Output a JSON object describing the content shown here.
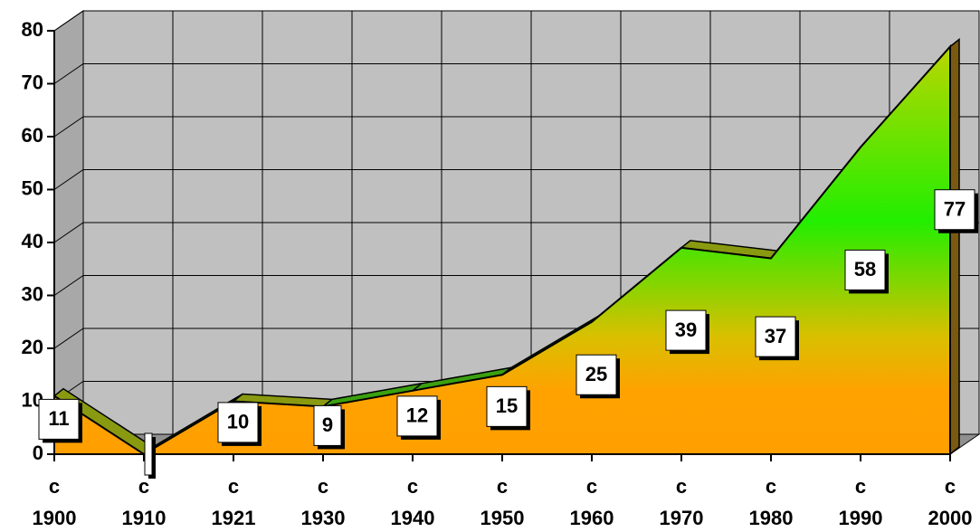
{
  "chart_data": {
    "type": "area3d",
    "categories": [
      "c\n1900",
      "c\n1910",
      "c\n1921",
      "c\n1930",
      "c\n1940",
      "c\n1950",
      "c\n1960",
      "c\n1970",
      "c\n1980",
      "c\n1990",
      "c\n2000"
    ],
    "values": [
      11,
      0,
      10,
      9,
      12,
      15,
      25,
      39,
      37,
      58,
      77
    ],
    "value_labels": [
      "11",
      null,
      "10",
      "9",
      "12",
      "15",
      "25",
      "39",
      "37",
      "58",
      "77"
    ],
    "ylim": [
      0,
      80
    ],
    "yticks": [
      0,
      10,
      20,
      30,
      40,
      50,
      60,
      70,
      80
    ],
    "grid": true
  }
}
